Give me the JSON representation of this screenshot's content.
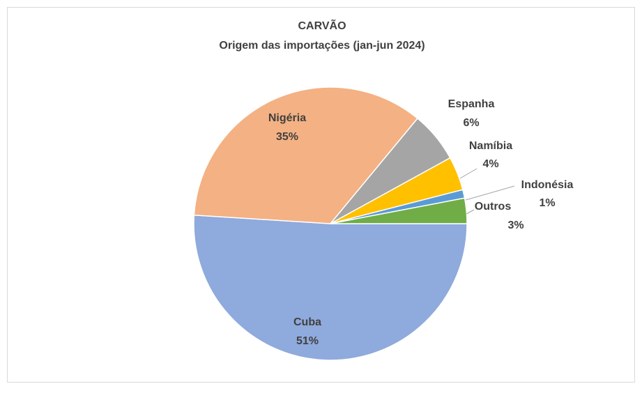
{
  "chart_data": {
    "type": "pie",
    "title": "CARVÃO",
    "subtitle": "Origem das importações (jan-jun 2024)",
    "categories": [
      "Cuba",
      "Nigéria",
      "Espanha",
      "Namíbia",
      "Indonésia",
      "Outros"
    ],
    "values": [
      51,
      35,
      6,
      4,
      1,
      3
    ],
    "value_labels": [
      "51%",
      "35%",
      "6%",
      "4%",
      "1%",
      "3%"
    ],
    "colors": [
      "#8faadc",
      "#f4b183",
      "#a5a5a5",
      "#ffc000",
      "#5b9bd5",
      "#70ad47"
    ]
  }
}
